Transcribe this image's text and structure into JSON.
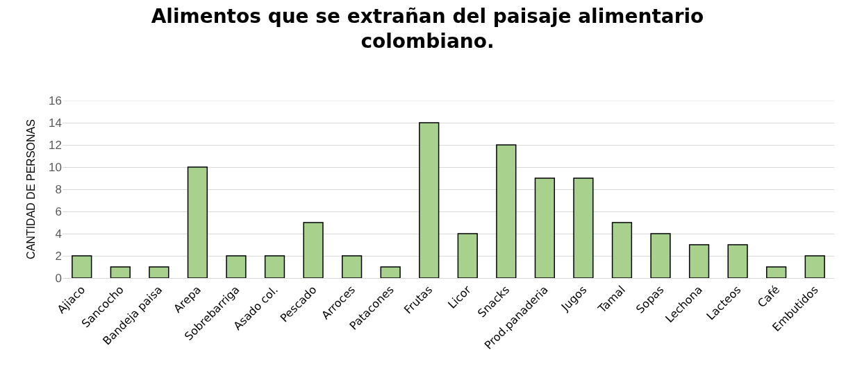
{
  "chart_data": {
    "type": "bar",
    "title": "Alimentos que se extrañan del paisaje alimentario colombiano.",
    "ylabel": "CANTIDAD DE PERSONAS",
    "categories": [
      "Ajiaco",
      "Sancocho",
      "Bandeja paisa",
      "Arepa",
      "Sobrebarriga",
      "Asado col.",
      "Pescado",
      "Arroces",
      "Patacones",
      "Frutas",
      "Licor",
      "Snacks",
      "Prod.panaderia",
      "Jugos",
      "Tamal",
      "Sopas",
      "Lechona",
      "Lacteos",
      "Café",
      "Embutidos"
    ],
    "values": [
      2,
      1,
      1,
      10,
      2,
      2,
      5,
      2,
      1,
      14,
      4,
      12,
      9,
      9,
      5,
      4,
      3,
      3,
      1,
      2
    ],
    "color": "#a9d18e",
    "ylim": [
      0,
      16
    ],
    "yticks": [
      0,
      2,
      4,
      6,
      8,
      10,
      12,
      14,
      16
    ],
    "grid": "y"
  }
}
